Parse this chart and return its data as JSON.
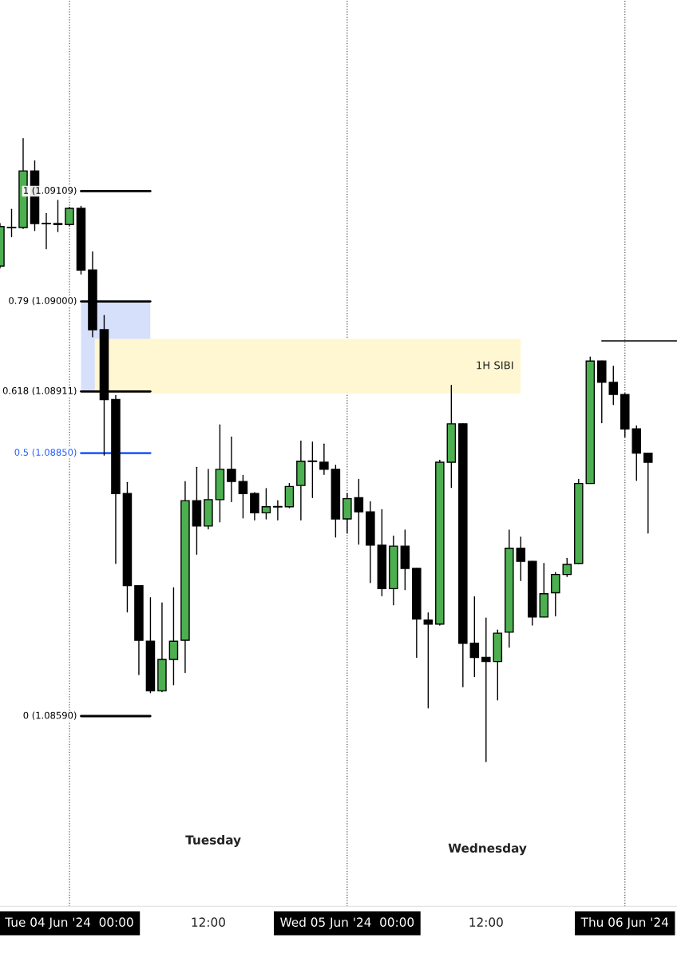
{
  "chart_data": {
    "type": "candlestick",
    "x": [
      "2024-06-03T18:00",
      "2024-06-03T19:00",
      "2024-06-03T20:00",
      "2024-06-03T21:00",
      "2024-06-03T22:00",
      "2024-06-03T23:00",
      "2024-06-04T00:00",
      "2024-06-04T01:00",
      "2024-06-04T02:00",
      "2024-06-04T03:00",
      "2024-06-04T04:00",
      "2024-06-04T05:00",
      "2024-06-04T06:00",
      "2024-06-04T07:00",
      "2024-06-04T08:00",
      "2024-06-04T09:00",
      "2024-06-04T10:00",
      "2024-06-04T11:00",
      "2024-06-04T12:00",
      "2024-06-04T13:00",
      "2024-06-04T14:00",
      "2024-06-04T15:00",
      "2024-06-04T16:00",
      "2024-06-04T17:00",
      "2024-06-04T18:00",
      "2024-06-04T19:00",
      "2024-06-04T20:00",
      "2024-06-04T21:00",
      "2024-06-04T22:00",
      "2024-06-04T23:00",
      "2024-06-05T00:00",
      "2024-06-05T01:00",
      "2024-06-05T02:00",
      "2024-06-05T03:00",
      "2024-06-05T04:00",
      "2024-06-05T05:00",
      "2024-06-05T06:00",
      "2024-06-05T07:00",
      "2024-06-05T08:00",
      "2024-06-05T09:00",
      "2024-06-05T10:00",
      "2024-06-05T11:00",
      "2024-06-05T12:00",
      "2024-06-05T13:00",
      "2024-06-05T14:00",
      "2024-06-05T15:00",
      "2024-06-05T16:00",
      "2024-06-05T17:00",
      "2024-06-05T18:00",
      "2024-06-05T19:00",
      "2024-06-05T20:00",
      "2024-06-05T21:00",
      "2024-06-05T22:00",
      "2024-06-05T23:00",
      "2024-06-06T00:00",
      "2024-06-06T01:00",
      "2024-06-06T02:00"
    ],
    "ohlc": [
      [
        1.09035,
        1.09077,
        1.09033,
        1.09074
      ],
      [
        1.09073,
        1.09091,
        1.09064,
        1.09073
      ],
      [
        1.09073,
        1.09161,
        1.09072,
        1.09129
      ],
      [
        1.09129,
        1.09139,
        1.0907,
        1.09077
      ],
      [
        1.09077,
        1.09087,
        1.09052,
        1.09077
      ],
      [
        1.09077,
        1.091,
        1.09069,
        1.09076
      ],
      [
        1.09076,
        1.09093,
        1.09075,
        1.09092
      ],
      [
        1.09092,
        1.09094,
        1.09027,
        1.09031
      ],
      [
        1.09031,
        1.09049,
        1.08965,
        1.08972
      ],
      [
        1.08972,
        1.08986,
        1.08848,
        1.08903
      ],
      [
        1.08903,
        1.08907,
        1.08741,
        1.0881
      ],
      [
        1.0881,
        1.08821,
        1.08693,
        1.08719
      ],
      [
        1.08719,
        1.08719,
        1.08631,
        1.08665
      ],
      [
        1.08664,
        1.08707,
        1.08613,
        1.08615
      ],
      [
        1.08615,
        1.08702,
        1.08614,
        1.08646
      ],
      [
        1.08646,
        1.08717,
        1.08621,
        1.08664
      ],
      [
        1.08665,
        1.08822,
        1.08633,
        1.08803
      ],
      [
        1.08803,
        1.08836,
        1.0875,
        1.08778
      ],
      [
        1.08778,
        1.08834,
        1.08775,
        1.08804
      ],
      [
        1.08804,
        1.08878,
        1.08782,
        1.08834
      ],
      [
        1.08834,
        1.08866,
        1.08802,
        1.08822
      ],
      [
        1.08822,
        1.08828,
        1.08786,
        1.0881
      ],
      [
        1.0881,
        1.08811,
        1.08784,
        1.08791
      ],
      [
        1.08791,
        1.08815,
        1.08785,
        1.08797
      ],
      [
        1.08797,
        1.08803,
        1.08784,
        1.08797
      ],
      [
        1.08797,
        1.0882,
        1.08796,
        1.08817
      ],
      [
        1.08818,
        1.08862,
        1.08784,
        1.08842
      ],
      [
        1.08842,
        1.08861,
        1.08806,
        1.08842
      ],
      [
        1.08841,
        1.08859,
        1.08829,
        1.08834
      ],
      [
        1.08834,
        1.08838,
        1.08767,
        1.08785
      ],
      [
        1.08785,
        1.0881,
        1.08771,
        1.08805
      ],
      [
        1.08806,
        1.08824,
        1.0876,
        1.08792
      ],
      [
        1.08792,
        1.08802,
        1.08722,
        1.08759
      ],
      [
        1.08759,
        1.08794,
        1.08709,
        1.08716
      ],
      [
        1.08716,
        1.08768,
        1.087,
        1.08758
      ],
      [
        1.08758,
        1.08774,
        1.08715,
        1.08736
      ],
      [
        1.08736,
        1.08736,
        1.08648,
        1.08686
      ],
      [
        1.08685,
        1.08692,
        1.08598,
        1.08681
      ],
      [
        1.08681,
        1.08843,
        1.0868,
        1.08841
      ],
      [
        1.08841,
        1.08917,
        1.08816,
        1.08879
      ],
      [
        1.08879,
        1.08879,
        1.08619,
        1.08662
      ],
      [
        1.08662,
        1.08708,
        1.08629,
        1.08648
      ],
      [
        1.08648,
        1.08687,
        1.08545,
        1.08644
      ],
      [
        1.08644,
        1.08675,
        1.08606,
        1.08672
      ],
      [
        1.08673,
        1.08774,
        1.08658,
        1.08756
      ],
      [
        1.08756,
        1.08767,
        1.08724,
        1.08743
      ],
      [
        1.08743,
        1.08743,
        1.0868,
        1.08688
      ],
      [
        1.08688,
        1.08741,
        1.08688,
        1.08711
      ],
      [
        1.08712,
        1.08732,
        1.08689,
        1.0873
      ],
      [
        1.0873,
        1.08746,
        1.08728,
        1.0874
      ],
      [
        1.08741,
        1.08824,
        1.08741,
        1.0882
      ],
      [
        1.0882,
        1.08945,
        1.0882,
        1.08941
      ],
      [
        1.08941,
        1.08941,
        1.0888,
        1.0892
      ],
      [
        1.0892,
        1.08936,
        1.08898,
        1.08908
      ],
      [
        1.08908,
        1.08909,
        1.08866,
        1.08874
      ],
      [
        1.08874,
        1.08877,
        1.08823,
        1.0885
      ],
      [
        1.0885,
        1.0885,
        1.08771,
        1.08841
      ]
    ],
    "colors": [
      "#4caf50",
      "#000000",
      "#4caf50",
      "#000000",
      "#000000",
      "#000000",
      "#4caf50",
      "#000000",
      "#000000",
      "#000000",
      "#000000",
      "#000000",
      "#000000",
      "#000000",
      "#4caf50",
      "#4caf50",
      "#4caf50",
      "#000000",
      "#4caf50",
      "#4caf50",
      "#000000",
      "#000000",
      "#000000",
      "#4caf50",
      "#000000",
      "#4caf50",
      "#4caf50",
      "#000000",
      "#000000",
      "#000000",
      "#4caf50",
      "#000000",
      "#000000",
      "#000000",
      "#4caf50",
      "#000000",
      "#000000",
      "#000000",
      "#4caf50",
      "#4caf50",
      "#000000",
      "#000000",
      "#000000",
      "#4caf50",
      "#4caf50",
      "#000000",
      "#000000",
      "#4caf50",
      "#4caf50",
      "#4caf50",
      "#4caf50",
      "#4caf50",
      "#000000",
      "#000000",
      "#000000",
      "#000000",
      "#000000"
    ],
    "xlim": [
      "2024-06-03T18:00",
      "2024-06-06T04:30"
    ],
    "xticks": [
      {
        "value": "2024-06-04T00:00",
        "label": "Tue 04 Jun '24  00:00"
      },
      {
        "value": "2024-06-04T12:00",
        "label": "12:00"
      },
      {
        "value": "2024-06-05T00:00",
        "label": "Wed 05 Jun '24  00:00"
      },
      {
        "value": "2024-06-05T12:00",
        "label": "12:00"
      },
      {
        "value": "2024-06-06T00:00",
        "label": "Thu 06 Jun '24"
      }
    ],
    "ylim": [
      1.08402,
      1.09298
    ],
    "tick_labels": "x",
    "ref_lines": [
      {
        "axis": "y",
        "value": 1.09109,
        "label": "1 (1.09109)",
        "color": "#000000"
      },
      {
        "axis": "y",
        "value": 1.09,
        "label": "0.79 (1.09000)",
        "color": "#000000"
      },
      {
        "axis": "y",
        "value": 1.08911,
        "label": "0.618 (1.08911)",
        "color": "#000000"
      },
      {
        "axis": "y",
        "value": 1.0885,
        "label": "0.5 (1.08850)",
        "color": "#2962ff"
      },
      {
        "axis": "y",
        "value": 1.0859,
        "label": "0 (1.08590)",
        "color": "#000000"
      },
      {
        "axis": "y",
        "value": 1.08961,
        "color": "#000000"
      },
      {
        "axis": "x",
        "value": "2024-06-04T00:00",
        "color": "#555555",
        "line_style": "dotted"
      },
      {
        "axis": "x",
        "value": "2024-06-05T00:00",
        "color": "#555555",
        "line_style": "dotted"
      },
      {
        "axis": "x",
        "value": "2024-06-06T00:00",
        "color": "#555555",
        "line_style": "dotted"
      }
    ],
    "bands": [
      {
        "axis": "y",
        "from": 1.08911,
        "to": 1.09,
        "color": "#d6e0fb"
      },
      {
        "axis": "y",
        "from": 1.08909,
        "to": 1.08963,
        "label": "1H SIBI",
        "color": "#fff7d1"
      }
    ],
    "annotations": [
      "Tuesday",
      "Wednesday"
    ]
  }
}
